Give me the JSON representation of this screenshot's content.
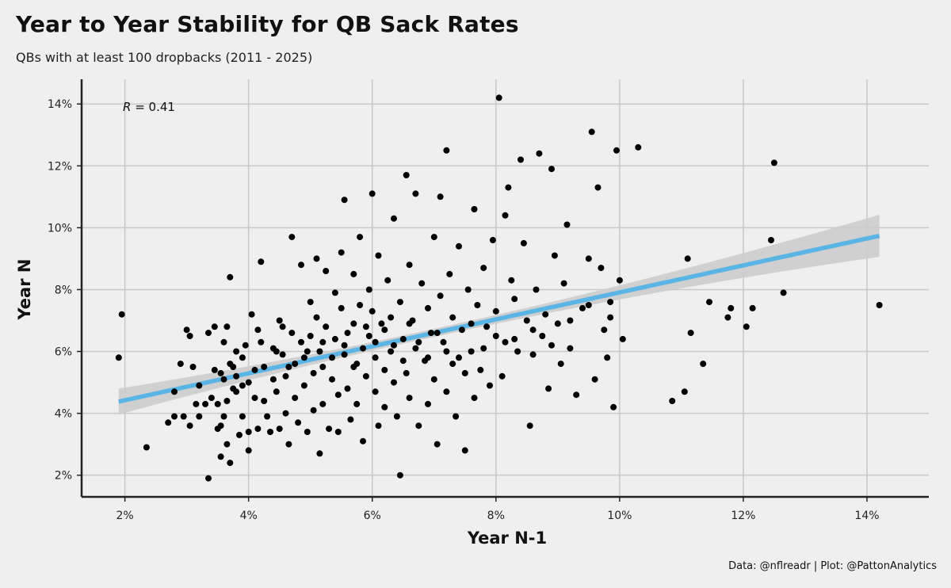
{
  "header": {
    "title": "Year to Year Stability for QB Sack Rates",
    "subtitle": "QBs with at least 100 dropbacks (2011 - 2025)"
  },
  "caption": "Data: @nflreadr | Plot: @PattonAnalytics",
  "colors": {
    "background": "#efefef",
    "points": "#000000",
    "trend_line": "#5ab4e5",
    "confidence_band": "#cccccc",
    "grid": "#c8c8c8"
  },
  "chart_data": {
    "type": "scatter",
    "title": "Year to Year Stability for QB Sack Rates",
    "subtitle": "QBs with at least 100 dropbacks (2011 - 2025)",
    "xlabel": "Year N-1",
    "ylabel": "Year N",
    "xlim": [
      1.3,
      15.0
    ],
    "ylim": [
      1.3,
      14.8
    ],
    "x_ticks": [
      2,
      4,
      6,
      8,
      10,
      12,
      14
    ],
    "y_ticks": [
      2,
      4,
      6,
      8,
      10,
      12,
      14
    ],
    "x_tick_labels": [
      "2%",
      "4%",
      "6%",
      "8%",
      "10%",
      "12%",
      "14%"
    ],
    "y_tick_labels": [
      "2%",
      "4%",
      "6%",
      "8%",
      "10%",
      "12%",
      "14%"
    ],
    "grid": true,
    "annotation": {
      "r_symbol": "R",
      "text": " = 0.41"
    },
    "trend": {
      "x": [
        1.9,
        14.2
      ],
      "y": [
        4.38,
        9.74
      ],
      "band_halfwidth_ends": [
        0.42,
        0.68
      ],
      "band_halfwidth_center": 0.13
    },
    "points": [
      [
        1.9,
        5.8
      ],
      [
        1.95,
        7.2
      ],
      [
        2.35,
        2.9
      ],
      [
        2.7,
        3.7
      ],
      [
        2.8,
        3.9
      ],
      [
        2.8,
        4.7
      ],
      [
        2.9,
        5.6
      ],
      [
        2.95,
        3.9
      ],
      [
        3.0,
        6.7
      ],
      [
        3.05,
        6.5
      ],
      [
        3.05,
        3.6
      ],
      [
        3.1,
        5.5
      ],
      [
        3.15,
        4.3
      ],
      [
        3.2,
        3.9
      ],
      [
        3.3,
        4.3
      ],
      [
        3.35,
        6.6
      ],
      [
        3.35,
        1.9
      ],
      [
        3.4,
        4.5
      ],
      [
        3.45,
        6.8
      ],
      [
        3.45,
        5.4
      ],
      [
        3.5,
        3.5
      ],
      [
        3.5,
        4.3
      ],
      [
        3.55,
        5.3
      ],
      [
        3.55,
        3.6
      ],
      [
        3.55,
        2.6
      ],
      [
        3.6,
        6.3
      ],
      [
        3.6,
        5.1
      ],
      [
        3.6,
        3.9
      ],
      [
        3.65,
        6.8
      ],
      [
        3.65,
        4.4
      ],
      [
        3.65,
        3.0
      ],
      [
        3.7,
        8.4
      ],
      [
        3.7,
        5.6
      ],
      [
        3.7,
        2.4
      ],
      [
        3.75,
        4.8
      ],
      [
        3.8,
        6.0
      ],
      [
        3.8,
        5.2
      ],
      [
        3.8,
        4.7
      ],
      [
        3.85,
        3.3
      ],
      [
        3.9,
        5.8
      ],
      [
        3.9,
        4.9
      ],
      [
        3.9,
        3.9
      ],
      [
        3.95,
        6.2
      ],
      [
        4.0,
        5.0
      ],
      [
        4.0,
        3.4
      ],
      [
        4.0,
        2.8
      ],
      [
        4.05,
        7.2
      ],
      [
        4.1,
        5.4
      ],
      [
        4.1,
        4.5
      ],
      [
        4.15,
        3.5
      ],
      [
        4.2,
        8.9
      ],
      [
        4.2,
        6.3
      ],
      [
        4.25,
        5.5
      ],
      [
        4.25,
        4.4
      ],
      [
        4.3,
        3.9
      ],
      [
        4.35,
        3.4
      ],
      [
        4.4,
        6.1
      ],
      [
        4.4,
        5.1
      ],
      [
        4.45,
        4.7
      ],
      [
        4.5,
        7.0
      ],
      [
        4.5,
        3.5
      ],
      [
        4.55,
        6.8
      ],
      [
        4.55,
        5.9
      ],
      [
        4.6,
        5.2
      ],
      [
        4.6,
        4.0
      ],
      [
        4.65,
        3.0
      ],
      [
        4.7,
        9.7
      ],
      [
        4.7,
        6.6
      ],
      [
        4.75,
        5.6
      ],
      [
        4.75,
        4.5
      ],
      [
        4.8,
        3.7
      ],
      [
        4.85,
        8.8
      ],
      [
        4.85,
        6.3
      ],
      [
        4.9,
        5.8
      ],
      [
        4.9,
        4.9
      ],
      [
        4.95,
        3.4
      ],
      [
        5.0,
        7.6
      ],
      [
        5.0,
        6.5
      ],
      [
        5.05,
        5.3
      ],
      [
        5.05,
        4.1
      ],
      [
        5.1,
        9.0
      ],
      [
        5.1,
        7.1
      ],
      [
        5.15,
        6.0
      ],
      [
        5.15,
        2.7
      ],
      [
        5.2,
        5.5
      ],
      [
        5.2,
        4.3
      ],
      [
        5.25,
        8.6
      ],
      [
        5.25,
        6.8
      ],
      [
        5.3,
        3.5
      ],
      [
        5.35,
        5.1
      ],
      [
        5.4,
        7.9
      ],
      [
        5.4,
        6.4
      ],
      [
        5.45,
        4.6
      ],
      [
        5.45,
        3.4
      ],
      [
        5.5,
        9.2
      ],
      [
        5.5,
        7.4
      ],
      [
        5.55,
        5.9
      ],
      [
        5.55,
        10.9
      ],
      [
        5.6,
        6.6
      ],
      [
        5.6,
        4.8
      ],
      [
        5.65,
        3.8
      ],
      [
        5.7,
        8.5
      ],
      [
        5.7,
        6.9
      ],
      [
        5.75,
        5.6
      ],
      [
        5.75,
        4.3
      ],
      [
        5.8,
        9.7
      ],
      [
        5.8,
        7.5
      ],
      [
        5.85,
        6.1
      ],
      [
        5.85,
        3.1
      ],
      [
        5.9,
        5.2
      ],
      [
        5.95,
        8.0
      ],
      [
        5.95,
        6.5
      ],
      [
        6.0,
        11.1
      ],
      [
        6.0,
        7.3
      ],
      [
        6.05,
        5.8
      ],
      [
        6.05,
        4.7
      ],
      [
        6.1,
        3.6
      ],
      [
        6.1,
        9.1
      ],
      [
        6.15,
        6.9
      ],
      [
        6.2,
        5.4
      ],
      [
        6.2,
        4.2
      ],
      [
        6.25,
        8.3
      ],
      [
        6.3,
        7.1
      ],
      [
        6.3,
        6.0
      ],
      [
        6.35,
        10.3
      ],
      [
        6.35,
        5.0
      ],
      [
        6.4,
        3.9
      ],
      [
        6.45,
        7.6
      ],
      [
        6.45,
        2.0
      ],
      [
        6.5,
        6.4
      ],
      [
        6.55,
        11.7
      ],
      [
        6.55,
        5.3
      ],
      [
        6.6,
        8.8
      ],
      [
        6.6,
        4.5
      ],
      [
        6.65,
        7.0
      ],
      [
        6.7,
        6.1
      ],
      [
        6.7,
        11.1
      ],
      [
        6.75,
        3.6
      ],
      [
        6.8,
        8.2
      ],
      [
        6.85,
        5.7
      ],
      [
        6.9,
        7.4
      ],
      [
        6.9,
        4.3
      ],
      [
        6.95,
        6.6
      ],
      [
        7.0,
        9.7
      ],
      [
        7.0,
        5.1
      ],
      [
        7.05,
        3.0
      ],
      [
        7.1,
        11.0
      ],
      [
        7.1,
        7.8
      ],
      [
        7.15,
        6.3
      ],
      [
        7.2,
        12.5
      ],
      [
        7.2,
        4.7
      ],
      [
        7.25,
        8.5
      ],
      [
        7.3,
        7.1
      ],
      [
        7.3,
        5.6
      ],
      [
        7.35,
        3.9
      ],
      [
        7.4,
        9.4
      ],
      [
        7.45,
        6.7
      ],
      [
        7.5,
        5.3
      ],
      [
        7.5,
        2.8
      ],
      [
        7.55,
        8.0
      ],
      [
        7.6,
        6.0
      ],
      [
        7.65,
        10.6
      ],
      [
        7.65,
        4.5
      ],
      [
        7.7,
        7.5
      ],
      [
        7.75,
        5.4
      ],
      [
        7.8,
        8.7
      ],
      [
        7.85,
        6.8
      ],
      [
        7.9,
        4.9
      ],
      [
        7.95,
        9.6
      ],
      [
        8.0,
        7.3
      ],
      [
        8.05,
        14.2
      ],
      [
        8.1,
        5.2
      ],
      [
        8.15,
        10.4
      ],
      [
        8.15,
        6.3
      ],
      [
        8.2,
        11.3
      ],
      [
        8.25,
        8.3
      ],
      [
        8.3,
        7.7
      ],
      [
        8.35,
        6.0
      ],
      [
        8.4,
        12.2
      ],
      [
        8.45,
        9.5
      ],
      [
        8.5,
        7.0
      ],
      [
        8.55,
        3.6
      ],
      [
        8.6,
        5.9
      ],
      [
        8.65,
        8.0
      ],
      [
        8.7,
        12.4
      ],
      [
        8.75,
        6.5
      ],
      [
        8.8,
        7.2
      ],
      [
        8.85,
        4.8
      ],
      [
        8.9,
        11.9
      ],
      [
        8.95,
        9.1
      ],
      [
        9.0,
        6.9
      ],
      [
        9.05,
        5.6
      ],
      [
        9.1,
        8.2
      ],
      [
        9.15,
        10.1
      ],
      [
        9.2,
        6.1
      ],
      [
        9.3,
        4.6
      ],
      [
        9.4,
        7.4
      ],
      [
        9.5,
        9.0
      ],
      [
        9.55,
        13.1
      ],
      [
        9.6,
        5.1
      ],
      [
        9.65,
        11.3
      ],
      [
        9.7,
        8.7
      ],
      [
        9.75,
        6.7
      ],
      [
        9.8,
        5.8
      ],
      [
        9.85,
        7.6
      ],
      [
        9.9,
        4.2
      ],
      [
        9.95,
        12.5
      ],
      [
        10.0,
        8.3
      ],
      [
        10.05,
        6.4
      ],
      [
        10.3,
        12.6
      ],
      [
        10.85,
        4.4
      ],
      [
        11.05,
        4.7
      ],
      [
        11.1,
        9.0
      ],
      [
        11.15,
        6.6
      ],
      [
        11.35,
        5.6
      ],
      [
        11.45,
        7.6
      ],
      [
        11.75,
        7.1
      ],
      [
        11.8,
        7.4
      ],
      [
        12.05,
        6.8
      ],
      [
        12.15,
        7.4
      ],
      [
        12.45,
        9.6
      ],
      [
        12.5,
        12.1
      ],
      [
        12.65,
        7.9
      ],
      [
        14.2,
        7.5
      ],
      [
        3.2,
        4.9
      ],
      [
        3.75,
        5.5
      ],
      [
        4.15,
        6.7
      ],
      [
        4.45,
        6.0
      ],
      [
        4.65,
        5.5
      ],
      [
        4.95,
        6.0
      ],
      [
        5.2,
        6.3
      ],
      [
        5.35,
        5.8
      ],
      [
        5.55,
        6.2
      ],
      [
        5.7,
        5.5
      ],
      [
        5.9,
        6.8
      ],
      [
        6.05,
        6.3
      ],
      [
        6.2,
        6.7
      ],
      [
        6.35,
        6.2
      ],
      [
        6.5,
        5.7
      ],
      [
        6.6,
        6.9
      ],
      [
        6.75,
        6.3
      ],
      [
        6.9,
        5.8
      ],
      [
        7.05,
        6.6
      ],
      [
        7.2,
        6.0
      ],
      [
        7.4,
        5.8
      ],
      [
        7.6,
        6.9
      ],
      [
        7.8,
        6.1
      ],
      [
        8.0,
        6.5
      ],
      [
        8.3,
        6.4
      ],
      [
        8.6,
        6.7
      ],
      [
        8.9,
        6.2
      ],
      [
        9.2,
        7.0
      ],
      [
        9.5,
        7.5
      ],
      [
        9.85,
        7.1
      ]
    ]
  }
}
